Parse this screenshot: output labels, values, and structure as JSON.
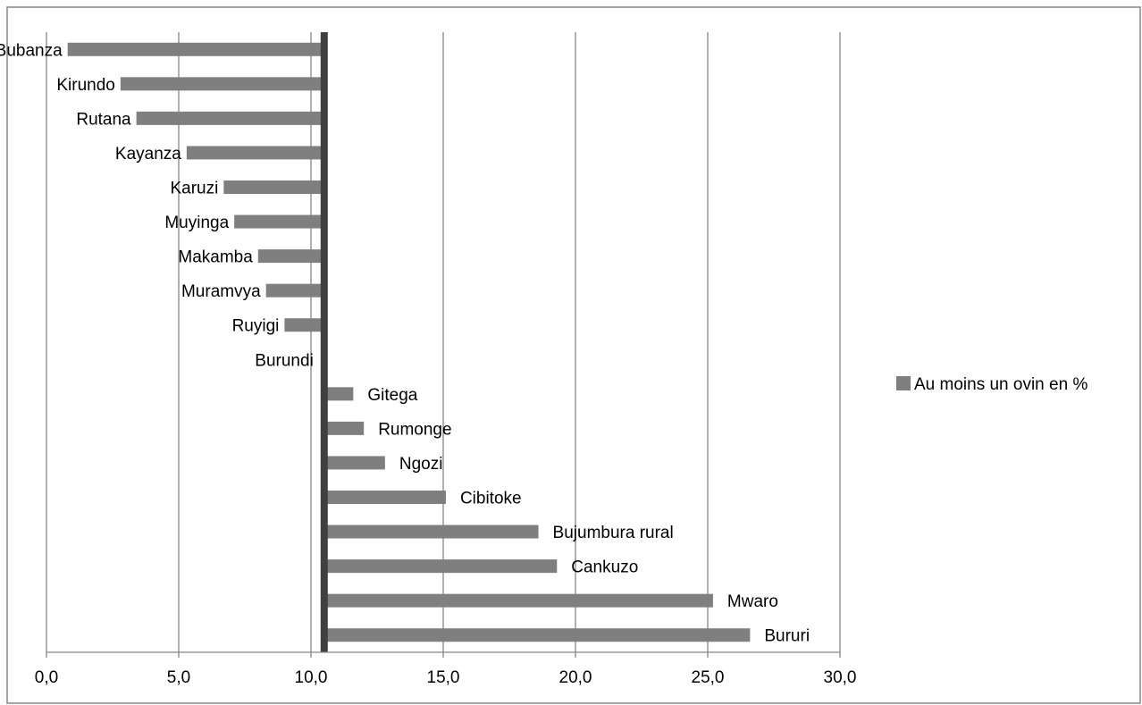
{
  "chart_data": {
    "type": "bar",
    "orientation": "horizontal",
    "title": "",
    "xlabel": "",
    "ylabel": "",
    "xlim": [
      0,
      30
    ],
    "xticks": [
      "0,0",
      "5,0",
      "10,0",
      "15,0",
      "20,0",
      "25,0",
      "30,0"
    ],
    "grid": true,
    "legend_position": "right",
    "reference_line": {
      "label": "Burundi",
      "value": 10.5
    },
    "series": [
      {
        "name": "Au moins un ovin en %",
        "color": "#7f7f7f",
        "categories": [
          "Bubanza",
          "Kirundo",
          "Rutana",
          "Kayanza",
          "Karuzi",
          "Muyinga",
          "Makamba",
          "Muramvya",
          "Ruyigi",
          "Burundi",
          "Gitega",
          "Rumonge",
          "Ngozi",
          "Cibitoke",
          "Bujumbura rural",
          "Cankuzo",
          "Mwaro",
          "Bururi"
        ],
        "values": [
          0.8,
          2.8,
          3.4,
          5.3,
          6.7,
          7.1,
          8.0,
          8.3,
          9.0,
          10.5,
          11.6,
          12.0,
          12.8,
          15.1,
          18.6,
          19.3,
          25.2,
          26.6
        ]
      }
    ]
  },
  "colors": {
    "bar": "#7f7f7f",
    "reference_line": "#404040",
    "grid": "#868686",
    "axis": "#868686"
  }
}
